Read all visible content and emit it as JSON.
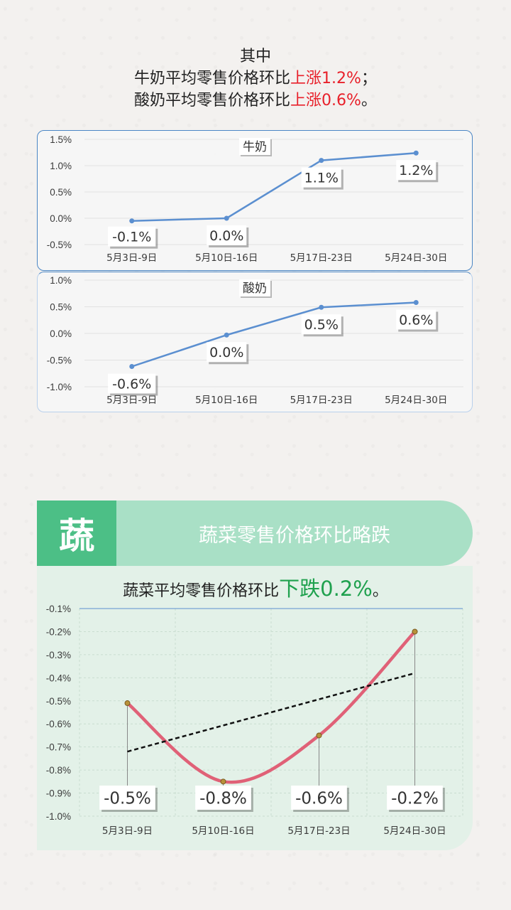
{
  "headline": {
    "line1": "其中",
    "milk_prefix": "牛奶平均零售价格环比",
    "milk_highlight": "上涨1.2%",
    "milk_suffix": "；",
    "yogurt_prefix": "酸奶平均零售价格环比",
    "yogurt_highlight": "上涨0.6%",
    "yogurt_suffix": "。",
    "highlight_color": "#e8202a"
  },
  "section": {
    "icon_char": "蔬",
    "title": "蔬菜零售价格环比略跌",
    "subtitle_prefix": "蔬菜平均零售价格环比",
    "subtitle_highlight": "下跌0.2%",
    "subtitle_suffix": "。",
    "icon_bg": "#4cbf86",
    "band_bg": "#a9e0c6",
    "highlight_color": "#1fa14e"
  },
  "chart_data": [
    {
      "type": "line",
      "title": "牛奶",
      "categories": [
        "5月3日-9日",
        "5月10日-16日",
        "5月17日-23日",
        "5月24日-30日"
      ],
      "values": [
        -0.05,
        0.0,
        1.1,
        1.24
      ],
      "data_labels": [
        "-0.1%",
        "0.0%",
        "1.1%",
        "1.2%"
      ],
      "yticks": [
        "1.5%",
        "1.0%",
        "0.5%",
        "0.0%",
        "-0.5%"
      ],
      "ylim": [
        -0.5,
        1.5
      ],
      "line_color": "#5b8fd0"
    },
    {
      "type": "line",
      "title": "酸奶",
      "categories": [
        "5月3日-9日",
        "5月10日-16日",
        "5月17日-23日",
        "5月24日-30日"
      ],
      "values": [
        -0.62,
        -0.03,
        0.49,
        0.58
      ],
      "data_labels": [
        "-0.6%",
        "0.0%",
        "0.5%",
        "0.6%"
      ],
      "yticks": [
        "1.0%",
        "0.5%",
        "0.0%",
        "-0.5%",
        "-1.0%"
      ],
      "ylim": [
        -1.0,
        1.0
      ],
      "line_color": "#5b8fd0"
    },
    {
      "type": "line",
      "title": "",
      "categories": [
        "5月3日-9日",
        "5月10日-16日",
        "5月17日-23日",
        "5月24日-30日"
      ],
      "values": [
        -0.51,
        -0.85,
        -0.65,
        -0.2
      ],
      "data_labels": [
        "-0.5%",
        "-0.8%",
        "-0.6%",
        "-0.2%"
      ],
      "trendline": [
        -0.72,
        -0.38
      ],
      "yticks": [
        "-0.1%",
        "-0.2%",
        "-0.3%",
        "-0.4%",
        "-0.5%",
        "-0.6%",
        "-0.7%",
        "-0.8%",
        "-0.9%",
        "-1.0%"
      ],
      "ylim": [
        -1.0,
        -0.1
      ],
      "line_color": "#e06177",
      "trend_color": "#111111",
      "grid": true
    }
  ]
}
